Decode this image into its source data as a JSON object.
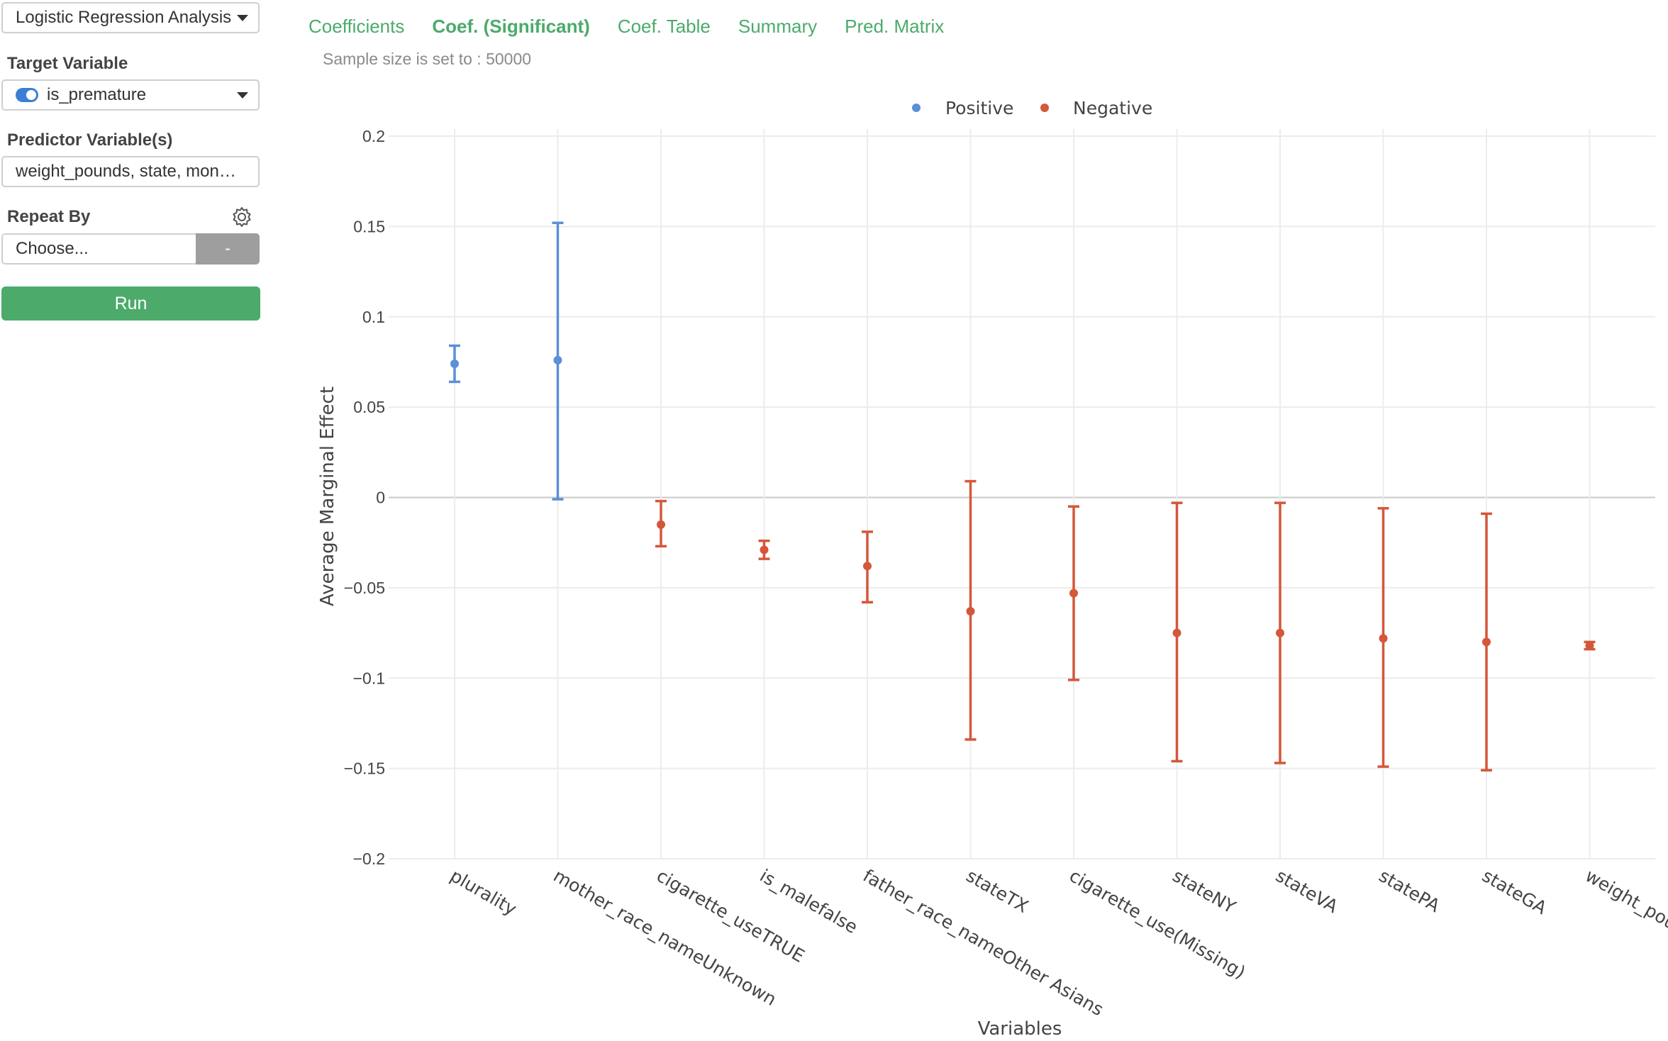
{
  "sidebar": {
    "analysis_select": "Logistic Regression Analysis",
    "target_label": "Target Variable",
    "target_value": "is_premature",
    "predictor_label": "Predictor Variable(s)",
    "predictor_value": "weight_pounds, state, mon…",
    "repeat_label": "Repeat By",
    "repeat_placeholder": "Choose...",
    "repeat_button": "-",
    "run_button": "Run"
  },
  "tabs": [
    "Coefficients",
    "Coef. (Significant)",
    "Coef. Table",
    "Summary",
    "Pred. Matrix"
  ],
  "active_tab": 1,
  "sample_note": "Sample size is set to : 50000",
  "colors": {
    "accent_green": "#4caa6b",
    "positive": "#5b8fd8",
    "negative": "#d4573a"
  },
  "chart_data": {
    "type": "scatter",
    "error_bars": true,
    "xlabel": "Variables",
    "ylabel": "Average Marginal Effect",
    "ylim": [
      -0.2,
      0.2
    ],
    "yticks": [
      0.2,
      0.15,
      0.1,
      0.05,
      0,
      -0.05,
      -0.1,
      -0.15,
      -0.2
    ],
    "ytick_labels": [
      "0.2",
      "0.15",
      "0.1",
      "0.05",
      "0",
      "−0.05",
      "−0.1",
      "−0.15",
      "−0.2"
    ],
    "grid": true,
    "legend_position": "top-center",
    "series": [
      {
        "name": "Positive",
        "color": "#5b8fd8"
      },
      {
        "name": "Negative",
        "color": "#d4573a"
      }
    ],
    "categories": [
      "plurality",
      "mother_race_nameUnknown",
      "cigarette_useTRUE",
      "is_malefalse",
      "father_race_nameOther Asians",
      "stateTX",
      "cigarette_use(Missing)",
      "stateNY",
      "stateVA",
      "statePA",
      "stateGA",
      "weight_pounds"
    ],
    "points": [
      {
        "x": "plurality",
        "y": 0.074,
        "low": 0.064,
        "high": 0.084,
        "series": "Positive"
      },
      {
        "x": "mother_race_nameUnknown",
        "y": 0.076,
        "low": -0.001,
        "high": 0.152,
        "series": "Positive"
      },
      {
        "x": "cigarette_useTRUE",
        "y": -0.015,
        "low": -0.027,
        "high": -0.002,
        "series": "Negative"
      },
      {
        "x": "is_malefalse",
        "y": -0.029,
        "low": -0.034,
        "high": -0.024,
        "series": "Negative"
      },
      {
        "x": "father_race_nameOther Asians",
        "y": -0.038,
        "low": -0.058,
        "high": -0.019,
        "series": "Negative"
      },
      {
        "x": "stateTX",
        "y": -0.063,
        "low": -0.134,
        "high": 0.009,
        "series": "Negative"
      },
      {
        "x": "cigarette_use(Missing)",
        "y": -0.053,
        "low": -0.101,
        "high": -0.005,
        "series": "Negative"
      },
      {
        "x": "stateNY",
        "y": -0.075,
        "low": -0.146,
        "high": -0.003,
        "series": "Negative"
      },
      {
        "x": "stateVA",
        "y": -0.075,
        "low": -0.147,
        "high": -0.003,
        "series": "Negative"
      },
      {
        "x": "statePA",
        "y": -0.078,
        "low": -0.149,
        "high": -0.006,
        "series": "Negative"
      },
      {
        "x": "stateGA",
        "y": -0.08,
        "low": -0.151,
        "high": -0.009,
        "series": "Negative"
      },
      {
        "x": "weight_pounds",
        "y": -0.082,
        "low": -0.084,
        "high": -0.08,
        "series": "Negative"
      }
    ]
  }
}
